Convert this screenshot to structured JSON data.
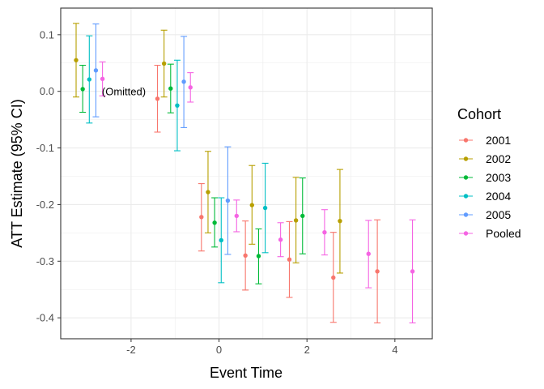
{
  "chart_data": {
    "type": "scatter",
    "subtype": "errorbar-pointrange",
    "title": "",
    "xlabel": "Event Time",
    "ylabel": "ATT Estimate (95% CI)",
    "xlim": [
      -3.6,
      4.85
    ],
    "ylim": [
      -0.437,
      0.147
    ],
    "x_ticks": [
      -2,
      0,
      2,
      4
    ],
    "x_tick_labels": [
      "-2",
      "0",
      "2",
      "4"
    ],
    "y_ticks": [
      0.1,
      0.0,
      -0.1,
      -0.2,
      -0.3,
      -0.4
    ],
    "y_tick_labels": [
      "0.1",
      "0.0",
      "-0.1",
      "-0.2",
      "-0.3",
      "-0.4"
    ],
    "grid": true,
    "legend": {
      "title": "Cohort",
      "position": "right"
    },
    "annotation": {
      "text": "(Omitted)",
      "x": -2.7,
      "y": 0.0
    },
    "series": [
      {
        "name": "2001",
        "color": "#F8766D",
        "points": [
          {
            "x": -1.4,
            "y": -0.013,
            "lo": -0.072,
            "hi": 0.046
          },
          {
            "x": -0.4,
            "y": -0.222,
            "lo": -0.282,
            "hi": -0.163
          },
          {
            "x": 0.6,
            "y": -0.29,
            "lo": -0.351,
            "hi": -0.229
          },
          {
            "x": 1.6,
            "y": -0.297,
            "lo": -0.364,
            "hi": -0.23
          },
          {
            "x": 2.6,
            "y": -0.329,
            "lo": -0.408,
            "hi": -0.249
          },
          {
            "x": 3.6,
            "y": -0.318,
            "lo": -0.409,
            "hi": -0.227
          }
        ]
      },
      {
        "name": "2002",
        "color": "#B79F00",
        "points": [
          {
            "x": -3.25,
            "y": 0.055,
            "lo": -0.01,
            "hi": 0.12
          },
          {
            "x": -1.25,
            "y": 0.049,
            "lo": -0.01,
            "hi": 0.108
          },
          {
            "x": -0.25,
            "y": -0.178,
            "lo": -0.25,
            "hi": -0.106
          },
          {
            "x": 0.75,
            "y": -0.201,
            "lo": -0.27,
            "hi": -0.131
          },
          {
            "x": 1.75,
            "y": -0.228,
            "lo": -0.303,
            "hi": -0.152
          },
          {
            "x": 2.75,
            "y": -0.229,
            "lo": -0.321,
            "hi": -0.138
          }
        ]
      },
      {
        "name": "2003",
        "color": "#00BA38",
        "points": [
          {
            "x": -3.1,
            "y": 0.004,
            "lo": -0.037,
            "hi": 0.046
          },
          {
            "x": -1.1,
            "y": 0.005,
            "lo": -0.038,
            "hi": 0.048
          },
          {
            "x": -0.1,
            "y": -0.232,
            "lo": -0.275,
            "hi": -0.188
          },
          {
            "x": 0.9,
            "y": -0.291,
            "lo": -0.34,
            "hi": -0.243
          },
          {
            "x": 1.9,
            "y": -0.22,
            "lo": -0.287,
            "hi": -0.153
          }
        ]
      },
      {
        "name": "2004",
        "color": "#00BFC4",
        "points": [
          {
            "x": -2.95,
            "y": 0.021,
            "lo": -0.056,
            "hi": 0.098
          },
          {
            "x": -0.95,
            "y": -0.025,
            "lo": -0.105,
            "hi": 0.055
          },
          {
            "x": 0.05,
            "y": -0.263,
            "lo": -0.338,
            "hi": -0.188
          },
          {
            "x": 1.05,
            "y": -0.206,
            "lo": -0.285,
            "hi": -0.127
          }
        ]
      },
      {
        "name": "2005",
        "color": "#619CFF",
        "points": [
          {
            "x": -2.8,
            "y": 0.037,
            "lo": -0.045,
            "hi": 0.119
          },
          {
            "x": -0.8,
            "y": 0.017,
            "lo": -0.064,
            "hi": 0.097
          },
          {
            "x": 0.2,
            "y": -0.193,
            "lo": -0.288,
            "hi": -0.098
          }
        ]
      },
      {
        "name": "Pooled",
        "color": "#F564E3",
        "points": [
          {
            "x": -2.65,
            "y": 0.022,
            "lo": -0.008,
            "hi": 0.052
          },
          {
            "x": -0.65,
            "y": 0.007,
            "lo": -0.019,
            "hi": 0.033
          },
          {
            "x": 0.4,
            "y": -0.22,
            "lo": -0.248,
            "hi": -0.192
          },
          {
            "x": 1.4,
            "y": -0.262,
            "lo": -0.292,
            "hi": -0.232
          },
          {
            "x": 2.4,
            "y": -0.249,
            "lo": -0.289,
            "hi": -0.209
          },
          {
            "x": 3.4,
            "y": -0.287,
            "lo": -0.347,
            "hi": -0.228
          },
          {
            "x": 4.4,
            "y": -0.318,
            "lo": -0.409,
            "hi": -0.227
          }
        ]
      }
    ]
  }
}
